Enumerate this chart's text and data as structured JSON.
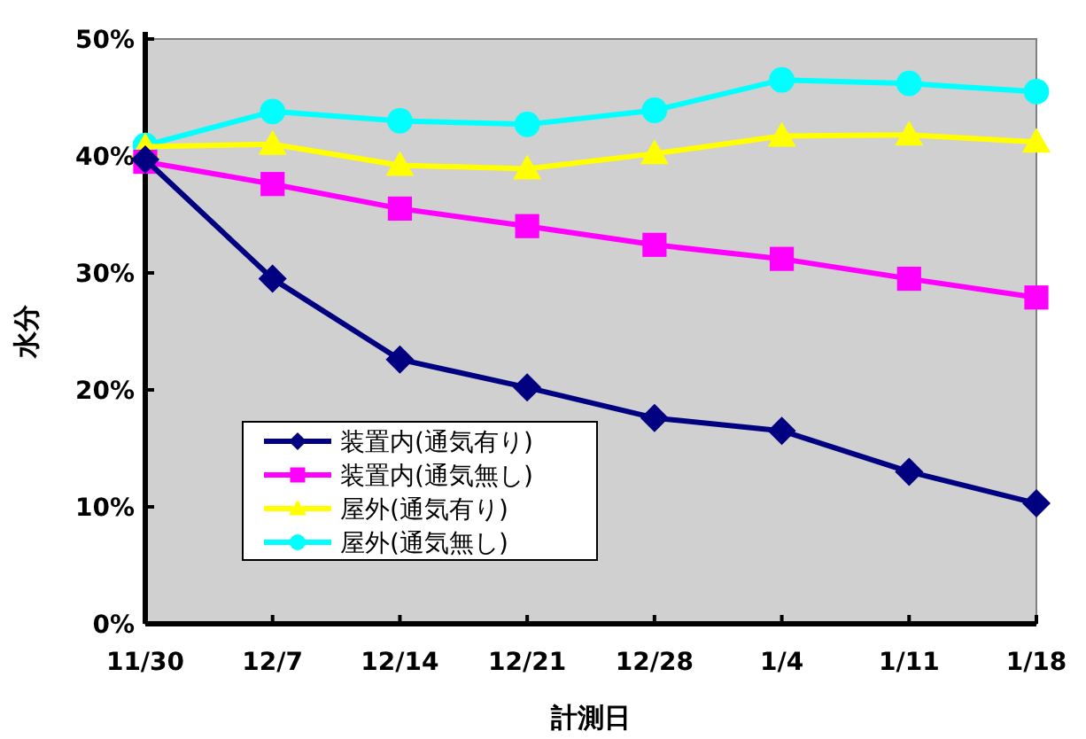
{
  "chart_data": {
    "type": "line",
    "xlabel": "計測日",
    "ylabel": "水分",
    "categories": [
      "11/30",
      "12/7",
      "12/14",
      "12/21",
      "12/28",
      "1/4",
      "1/11",
      "1/18"
    ],
    "ylim": [
      0,
      50
    ],
    "yticks": [
      {
        "value": 0,
        "label": "0%"
      },
      {
        "value": 10,
        "label": "10%"
      },
      {
        "value": 20,
        "label": "20%"
      },
      {
        "value": 30,
        "label": "30%"
      },
      {
        "value": 40,
        "label": "40%"
      },
      {
        "value": 50,
        "label": "50%"
      }
    ],
    "grid": false,
    "legend": "bottom left",
    "line_style": "solid",
    "series": [
      {
        "name": "装置内(通気有り)",
        "color": "#000080",
        "marker": "diamond",
        "values": [
          39.7,
          29.5,
          22.6,
          20.2,
          17.6,
          16.5,
          13,
          10.3
        ]
      },
      {
        "name": "装置内(通気無し)",
        "color": "#ff00ff",
        "marker": "square",
        "values": [
          39.5,
          37.6,
          35.5,
          34,
          32.4,
          31.2,
          29.5,
          27.9
        ]
      },
      {
        "name": "屋外(通気有り)",
        "color": "#ffff00",
        "marker": "triangle",
        "values": [
          40.8,
          41,
          39.2,
          38.9,
          40.2,
          41.7,
          41.8,
          41.2
        ]
      },
      {
        "name": "屋外(通気無し)",
        "color": "#00ffff",
        "marker": "circle",
        "values": [
          40.9,
          43.8,
          43,
          42.7,
          43.9,
          46.5,
          46.2,
          45.5
        ]
      }
    ]
  }
}
